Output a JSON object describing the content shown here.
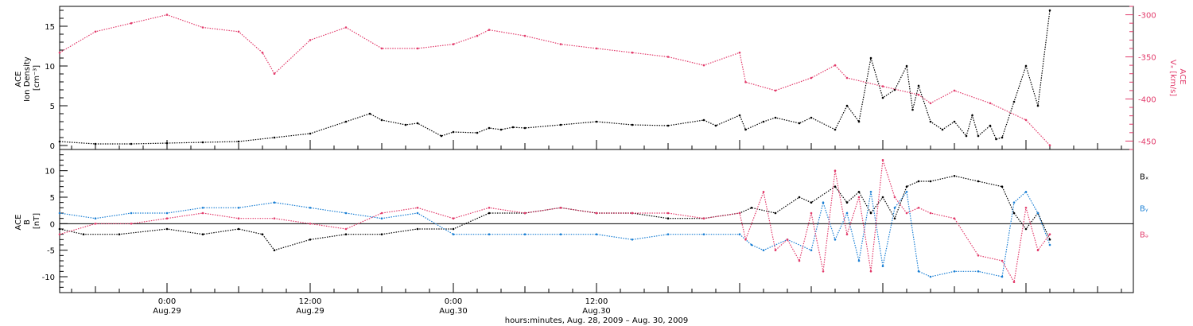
{
  "chart_data": [
    {
      "type": "scatter",
      "panel": "top",
      "x_unit": "hours since 2009-08-28 00:00",
      "xlim": [
        15,
        105
      ],
      "left_axis": {
        "label_lines": [
          "ACE",
          "Ion Density",
          "[cm⁻³]"
        ],
        "ylim": [
          -0.5,
          17.5
        ],
        "ticks": [
          "0",
          "5",
          "10",
          "15"
        ],
        "tick_values": [
          0,
          5,
          10,
          15
        ]
      },
      "right_axis": {
        "label_lines": [
          "ACE",
          "Vₓ [km/s]"
        ],
        "color": "#e23b6b",
        "ylim": [
          -460,
          -290
        ],
        "ticks": [
          "-300",
          "-350",
          "-400",
          "-450"
        ],
        "tick_values": [
          -300,
          -350,
          -400,
          -450
        ]
      },
      "series": [
        {
          "color": "#000000",
          "axis": "left",
          "x": [
            15,
            18,
            21,
            24,
            27,
            30,
            33,
            36,
            39,
            41,
            42,
            44,
            45,
            47,
            48,
            50,
            51,
            52,
            53,
            54,
            57,
            60,
            63,
            66,
            69,
            70,
            72,
            72.5,
            74,
            75,
            77,
            78,
            80,
            81,
            82,
            83,
            84,
            85,
            86,
            86.5,
            87,
            88,
            89,
            90,
            91,
            91.5,
            92,
            93,
            93.5,
            94,
            95,
            96,
            97,
            98
          ],
          "y": [
            0.5,
            0.2,
            0.2,
            0.3,
            0.4,
            0.5,
            1.0,
            1.5,
            3.0,
            4.0,
            3.2,
            2.6,
            2.8,
            1.2,
            1.7,
            1.6,
            2.2,
            2.0,
            2.3,
            2.2,
            2.6,
            3.0,
            2.6,
            2.5,
            3.2,
            2.5,
            3.8,
            2.0,
            3.0,
            3.5,
            2.8,
            3.5,
            2.0,
            5.0,
            3.0,
            11.0,
            6.0,
            7.0,
            10.0,
            4.5,
            7.5,
            3.0,
            2.0,
            3.0,
            1.2,
            3.8,
            1.2,
            2.5,
            0.8,
            1.0,
            5.5,
            10.0,
            5.0,
            17.0
          ]
        },
        {
          "color": "#e23b6b",
          "axis": "right",
          "x": [
            15,
            18,
            21,
            24,
            27,
            30,
            32,
            33,
            36,
            39,
            42,
            45,
            48,
            50,
            51,
            54,
            57,
            60,
            63,
            66,
            69,
            72,
            72.5,
            75,
            78,
            80,
            81,
            84,
            87,
            88,
            90,
            93,
            96,
            98
          ],
          "y": [
            -345,
            -320,
            -310,
            -300,
            -315,
            -320,
            -345,
            -370,
            -330,
            -315,
            -340,
            -340,
            -335,
            -325,
            -318,
            -325,
            -335,
            -340,
            -345,
            -350,
            -360,
            -345,
            -380,
            -390,
            -375,
            -360,
            -375,
            -385,
            -395,
            -405,
            -390,
            -405,
            -425,
            -455
          ]
        }
      ]
    },
    {
      "type": "scatter",
      "panel": "bottom",
      "x_unit": "hours since 2009-08-28 00:00",
      "xlim": [
        15,
        105
      ],
      "left_axis": {
        "label_lines": [
          "ACE",
          "B",
          "[nT]"
        ],
        "ylim": [
          -13,
          14
        ],
        "ticks": [
          "10",
          "5",
          "0",
          "-5",
          "-10"
        ],
        "tick_values": [
          10,
          5,
          0,
          -5,
          -10
        ]
      },
      "legend": [
        {
          "label": "Bₓ",
          "color": "#000000"
        },
        {
          "label": "Bᵧ",
          "color": "#1a7fd4"
        },
        {
          "label": "Bₔ",
          "color": "#e23b6b"
        }
      ],
      "series": [
        {
          "name": "Bₓ",
          "color": "#000000",
          "x": [
            15,
            17,
            20,
            24,
            27,
            30,
            32,
            33,
            36,
            39,
            42,
            45,
            48,
            51,
            54,
            57,
            60,
            63,
            66,
            69,
            72,
            73,
            75,
            77,
            78,
            80,
            81,
            82,
            83,
            84,
            85,
            86,
            87,
            88,
            90,
            92,
            94,
            95,
            96,
            97,
            98
          ],
          "y": [
            -1,
            -2,
            -2,
            -1,
            -2,
            -1,
            -2,
            -5,
            -3,
            -2,
            -2,
            -1,
            -1,
            2,
            2,
            3,
            2,
            2,
            1,
            1,
            2,
            3,
            2,
            5,
            4,
            7,
            4,
            6,
            2,
            5,
            1,
            7,
            8,
            8,
            9,
            8,
            7,
            2,
            -1,
            2,
            -3
          ]
        },
        {
          "name": "Bᵧ",
          "color": "#1a7fd4",
          "x": [
            15,
            18,
            21,
            24,
            27,
            30,
            33,
            36,
            39,
            42,
            45,
            48,
            51,
            54,
            57,
            60,
            63,
            66,
            69,
            72,
            73,
            74,
            76,
            78,
            79,
            80,
            81,
            82,
            83,
            84,
            85,
            86,
            87,
            88,
            90,
            92,
            94,
            95,
            96,
            97,
            98
          ],
          "y": [
            2,
            1,
            2,
            2,
            3,
            3,
            4,
            3,
            2,
            1,
            2,
            -2,
            -2,
            -2,
            -2,
            -2,
            -3,
            -2,
            -2,
            -2,
            -4,
            -5,
            -3,
            -5,
            4,
            -3,
            2,
            -7,
            6,
            -8,
            3,
            6,
            -9,
            -10,
            -9,
            -9,
            -10,
            4,
            6,
            2,
            -4
          ]
        },
        {
          "name": "Bₔ",
          "color": "#e23b6b",
          "x": [
            15,
            18,
            21,
            24,
            27,
            30,
            33,
            36,
            39,
            42,
            45,
            48,
            51,
            54,
            57,
            60,
            63,
            66,
            69,
            72,
            72.5,
            74,
            75,
            76,
            77,
            78,
            79,
            80,
            81,
            82,
            83,
            84,
            85,
            86,
            87,
            88,
            90,
            92,
            94,
            95,
            96,
            97,
            98
          ],
          "y": [
            -2,
            0,
            0,
            1,
            2,
            1,
            1,
            0,
            -1,
            2,
            3,
            1,
            3,
            2,
            3,
            2,
            2,
            2,
            1,
            2,
            -3,
            6,
            -5,
            -3,
            -7,
            2,
            -9,
            10,
            -2,
            5,
            -9,
            12,
            5,
            2,
            3,
            2,
            1,
            -6,
            -7,
            -11,
            3,
            -5,
            -2
          ]
        }
      ]
    }
  ],
  "x_axis": {
    "ticks": [
      {
        "value": 24,
        "line1": "0:00",
        "line2": "Aug.29"
      },
      {
        "value": 36,
        "line1": "12:00",
        "line2": "Aug.29"
      },
      {
        "value": 48,
        "line1": "0:00",
        "line2": "Aug.30"
      },
      {
        "value": 60,
        "line1": "12:00",
        "line2": "Aug.30"
      }
    ],
    "label": "hours:minutes, Aug. 28, 2009 – Aug. 30, 2009"
  }
}
